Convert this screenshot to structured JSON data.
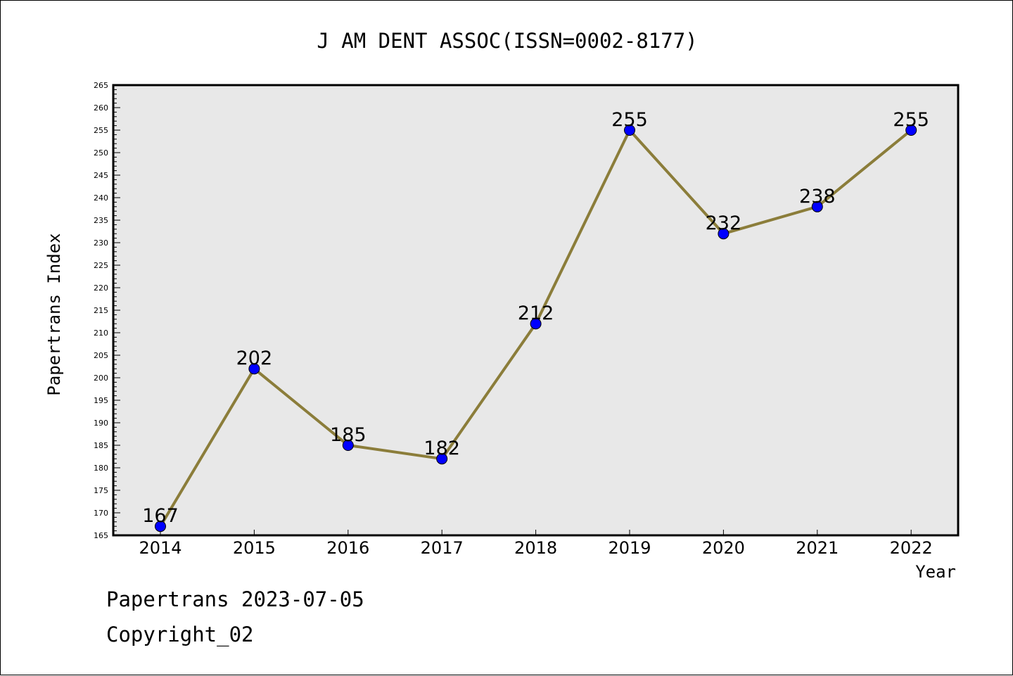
{
  "chart_data": {
    "type": "line",
    "title": "J AM DENT ASSOC(ISSN=0002-8177)",
    "xlabel": "Year",
    "ylabel": "Papertrans Index",
    "categories": [
      "2014",
      "2015",
      "2016",
      "2017",
      "2018",
      "2019",
      "2020",
      "2021",
      "2022"
    ],
    "series": [
      {
        "values": [
          167,
          202,
          185,
          182,
          212,
          255,
          232,
          238,
          255
        ]
      }
    ],
    "data_labels": [
      "167",
      "202",
      "185",
      "182",
      "212",
      "255",
      "232",
      "238",
      "255"
    ],
    "ylim": [
      165,
      265
    ],
    "yticks": [
      "165",
      "170",
      "175",
      "180",
      "185",
      "190",
      "195",
      "200",
      "205",
      "210",
      "215",
      "220",
      "225",
      "230",
      "235",
      "240",
      "245",
      "250",
      "255",
      "260",
      "265"
    ],
    "ytick_step": 5,
    "yminor_step": 1,
    "grid": false,
    "legend": "none",
    "colors": {
      "line": "#8b7d3a",
      "marker": "#0000ff",
      "plot_background": "#e8e8e8",
      "axis": "#000000"
    }
  },
  "footer": {
    "line1": "Papertrans 2023-07-05",
    "line2": "Copyright_02"
  }
}
